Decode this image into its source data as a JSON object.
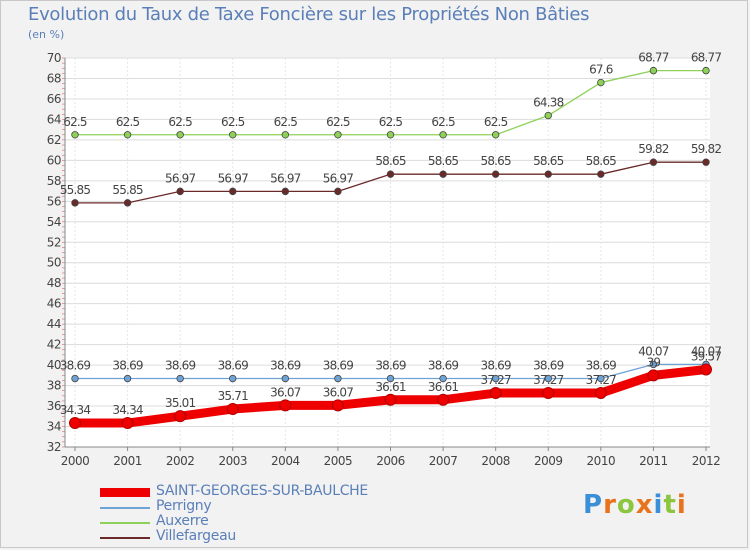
{
  "header": {
    "title": "Evolution du Taux de Taxe Foncière sur les Propriétés Non Bâties",
    "unit": "(en %)"
  },
  "logo": {
    "letters": [
      "P",
      "r",
      "o",
      "x",
      "i",
      "t",
      "i"
    ],
    "colors": [
      "#3a8fd6",
      "#e8731c",
      "#8cc63f",
      "#e8731c",
      "#3a8fd6",
      "#8cc63f",
      "#e8731c"
    ]
  },
  "chart_data": {
    "type": "line",
    "title": "Evolution du Taux de Taxe Foncière sur les Propriétés Non Bâties",
    "ylabel": "(en %)",
    "xlabel": "",
    "x": [
      "2000",
      "2001",
      "2002",
      "2003",
      "2004",
      "2005",
      "2006",
      "2007",
      "2008",
      "2009",
      "2010",
      "2011",
      "2012"
    ],
    "ylim": [
      32,
      70
    ],
    "yticks": [
      "32",
      "34",
      "36",
      "38",
      "40",
      "42",
      "44",
      "46",
      "48",
      "50",
      "52",
      "54",
      "56",
      "58",
      "60",
      "62",
      "64",
      "66",
      "68",
      "70"
    ],
    "grid": true,
    "legend_position": "bottom-left",
    "series": [
      {
        "name": "Villefargeau",
        "color": "#6b2a2a",
        "values": [
          55.85,
          55.85,
          56.97,
          56.97,
          56.97,
          56.97,
          58.65,
          58.65,
          58.65,
          58.65,
          58.65,
          59.82,
          59.82
        ],
        "labels": [
          "55.85",
          "55.85",
          "56.97",
          "56.97",
          "56.97",
          "56.97",
          "58.65",
          "58.65",
          "58.65",
          "58.65",
          "58.65",
          "59.82",
          "59.82"
        ]
      },
      {
        "name": "Auxerre",
        "color": "#8ed158",
        "values": [
          62.5,
          62.5,
          62.5,
          62.5,
          62.5,
          62.5,
          62.5,
          62.5,
          62.5,
          64.38,
          67.6,
          68.77,
          68.77
        ],
        "labels": [
          "62.5",
          "62.5",
          "62.5",
          "62.5",
          "62.5",
          "62.5",
          "62.5",
          "62.5",
          "62.5",
          "64.38",
          "67.6",
          "68.77",
          "68.77"
        ]
      },
      {
        "name": "Perrigny",
        "color": "#6fa3d6",
        "values": [
          38.69,
          38.69,
          38.69,
          38.69,
          38.69,
          38.69,
          38.69,
          38.69,
          38.69,
          38.69,
          38.69,
          40.07,
          40.07
        ],
        "labels": [
          "38.69",
          "38.69",
          "38.69",
          "38.69",
          "38.69",
          "38.69",
          "38.69",
          "38.69",
          "38.69",
          "38.69",
          "38.69",
          "40.07",
          "40.07"
        ]
      },
      {
        "name": "SAINT-GEORGES-SUR-BAULCHE",
        "color": "#ee0000",
        "values": [
          34.34,
          34.34,
          35.01,
          35.71,
          36.07,
          36.07,
          36.61,
          36.61,
          37.27,
          37.27,
          37.27,
          39.0,
          39.57
        ],
        "labels": [
          "34.34",
          "34.34",
          "35.01",
          "35.71",
          "36.07",
          "36.07",
          "36.61",
          "36.61",
          "37.27",
          "37.27",
          "37.27",
          "39",
          "39.57"
        ]
      }
    ],
    "legend_order": [
      "SAINT-GEORGES-SUR-BAULCHE",
      "Perrigny",
      "Auxerre",
      "Villefargeau"
    ]
  }
}
